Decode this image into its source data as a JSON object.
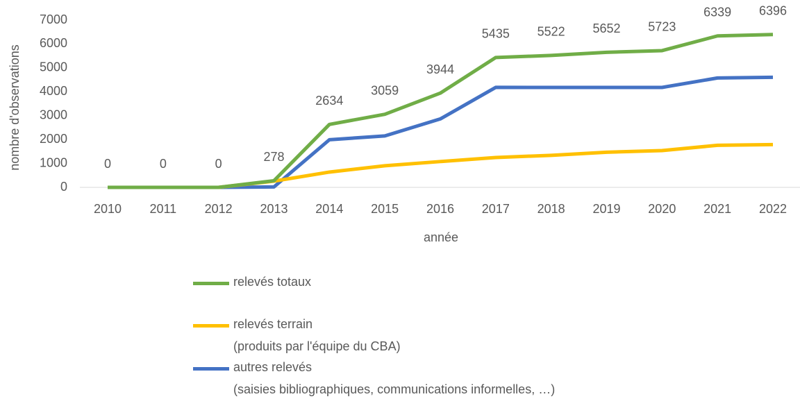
{
  "chart_data": {
    "type": "line",
    "categories": [
      "2010",
      "2011",
      "2012",
      "2013",
      "2014",
      "2015",
      "2016",
      "2017",
      "2018",
      "2019",
      "2020",
      "2021",
      "2022"
    ],
    "x_label": "année",
    "y_label": "nombre d'observations",
    "ylim": [
      0,
      7000
    ],
    "yticks": [
      0,
      1000,
      2000,
      3000,
      4000,
      5000,
      6000,
      7000
    ],
    "series": [
      {
        "name": "relevés totaux",
        "color": "#70ad47",
        "data_labels": true,
        "values": [
          0,
          0,
          0,
          278,
          2634,
          3059,
          3944,
          5435,
          5522,
          5652,
          5723,
          6339,
          6396
        ]
      },
      {
        "name": "relevés terrain\n(produits par l'équipe du CBA)",
        "color": "#ffc000",
        "data_labels": false,
        "values": [
          0,
          0,
          0,
          260,
          640,
          905,
          1080,
          1250,
          1340,
          1470,
          1540,
          1760,
          1790
        ]
      },
      {
        "name": "autres relevés\n(saisies bibliographiques, communications informelles, …)",
        "color": "#4472c4",
        "data_labels": false,
        "values": [
          0,
          0,
          0,
          18,
          1994,
          2154,
          2864,
          4185,
          4182,
          4182,
          4183,
          4579,
          4606
        ]
      }
    ]
  }
}
